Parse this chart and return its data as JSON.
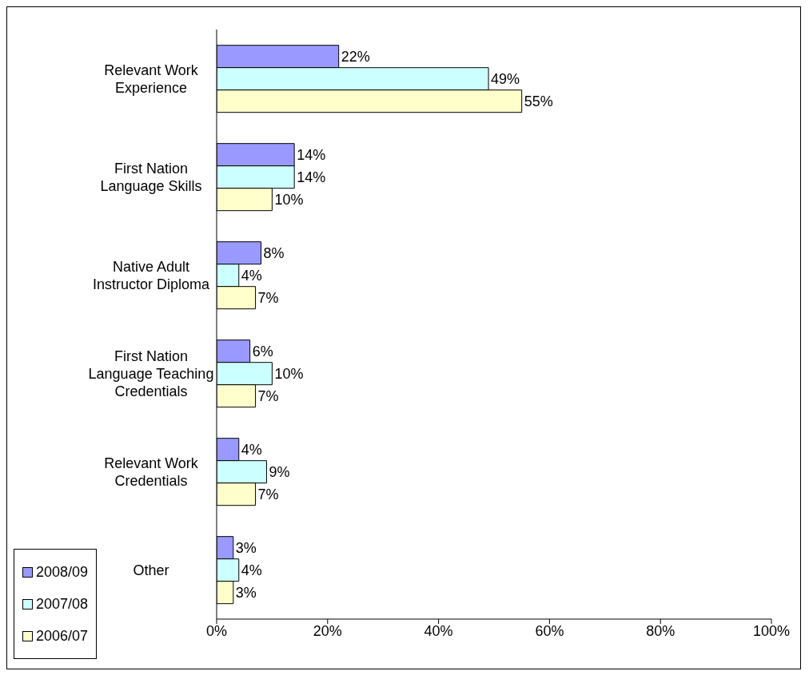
{
  "chart_data": {
    "type": "bar",
    "orientation": "horizontal",
    "categories": [
      "Relevant Work Experience",
      "First Nation Language Skills",
      "Native Adult Instructor Diploma",
      "First Nation Language Teaching Credentials",
      "Relevant Work Credentials",
      "Other"
    ],
    "series": [
      {
        "name": "2008/09",
        "color": "#9999ff",
        "values": [
          22,
          14,
          8,
          6,
          4,
          3
        ],
        "value_labels": [
          "22%",
          "14%",
          "8%",
          "6%",
          "4%",
          "3%"
        ]
      },
      {
        "name": "2007/08",
        "color": "#ccffff",
        "values": [
          49,
          14,
          4,
          10,
          9,
          4
        ],
        "value_labels": [
          "49%",
          "14%",
          "4%",
          "10%",
          "9%",
          "4%"
        ]
      },
      {
        "name": "2006/07",
        "color": "#ffffcc",
        "values": [
          55,
          10,
          7,
          7,
          7,
          3
        ],
        "value_labels": [
          "55%",
          "10%",
          "7%",
          "7%",
          "7%",
          "3%"
        ]
      }
    ],
    "xlim": [
      0,
      100
    ],
    "xticks": [
      {
        "value": 0,
        "label": "0%"
      },
      {
        "value": 20,
        "label": "20%"
      },
      {
        "value": 40,
        "label": "40%"
      },
      {
        "value": 60,
        "label": "60%"
      },
      {
        "value": 80,
        "label": "80%"
      },
      {
        "value": 100,
        "label": "100%"
      }
    ],
    "grid": false,
    "legend": "bottom left"
  }
}
